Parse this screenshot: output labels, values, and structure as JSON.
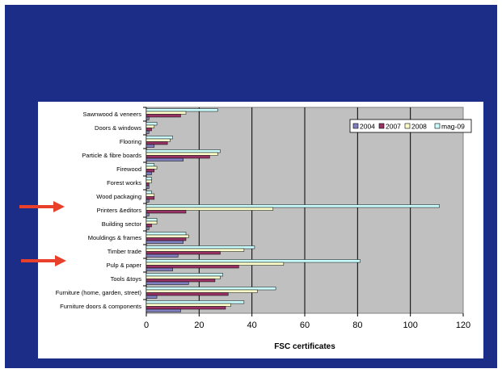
{
  "chart_data": {
    "type": "bar",
    "orientation": "horizontal",
    "categories": [
      "Sawnwood & veneers",
      "Doors & windows",
      "Flooring",
      "Particle & fibre boards",
      "Firewood",
      "Forest works",
      "Wood packaging",
      "Printers &editors",
      "Building sector",
      "Mouldings & frames",
      "Timber trade",
      "Pulp & paper",
      "Tools &toys",
      "Furniture (home, garden, street)",
      "Furniture doors & components"
    ],
    "series": [
      {
        "name": "2004",
        "color": "#8080c0",
        "values": [
          1,
          1,
          3,
          14,
          2,
          1,
          1,
          1,
          1,
          14,
          12,
          10,
          16,
          4,
          13
        ]
      },
      {
        "name": "2007",
        "color": "#993366",
        "values": [
          13,
          2,
          8,
          24,
          3,
          1,
          3,
          15,
          2,
          15,
          28,
          35,
          26,
          31,
          30
        ]
      },
      {
        "name": "2008",
        "color": "#ffffcc",
        "values": [
          15,
          3,
          9,
          27,
          4,
          2,
          3,
          48,
          4,
          16,
          37,
          52,
          28,
          42,
          32
        ]
      },
      {
        "name": "mag-09",
        "color": "#ccffff",
        "values": [
          27,
          4,
          10,
          28,
          3,
          2,
          2,
          111,
          4,
          15,
          41,
          81,
          29,
          49,
          37
        ]
      }
    ],
    "xlabel": "FSC certificates",
    "xlim": [
      0,
      120
    ],
    "xticks": [
      0,
      20,
      40,
      60,
      80,
      100,
      120
    ],
    "grid": true,
    "plot_background": "#c0c0c0",
    "legend_position": "top-right",
    "highlighted_categories": [
      "Printers &editors",
      "Pulp & paper"
    ],
    "arrow_color": "#e8402a"
  }
}
